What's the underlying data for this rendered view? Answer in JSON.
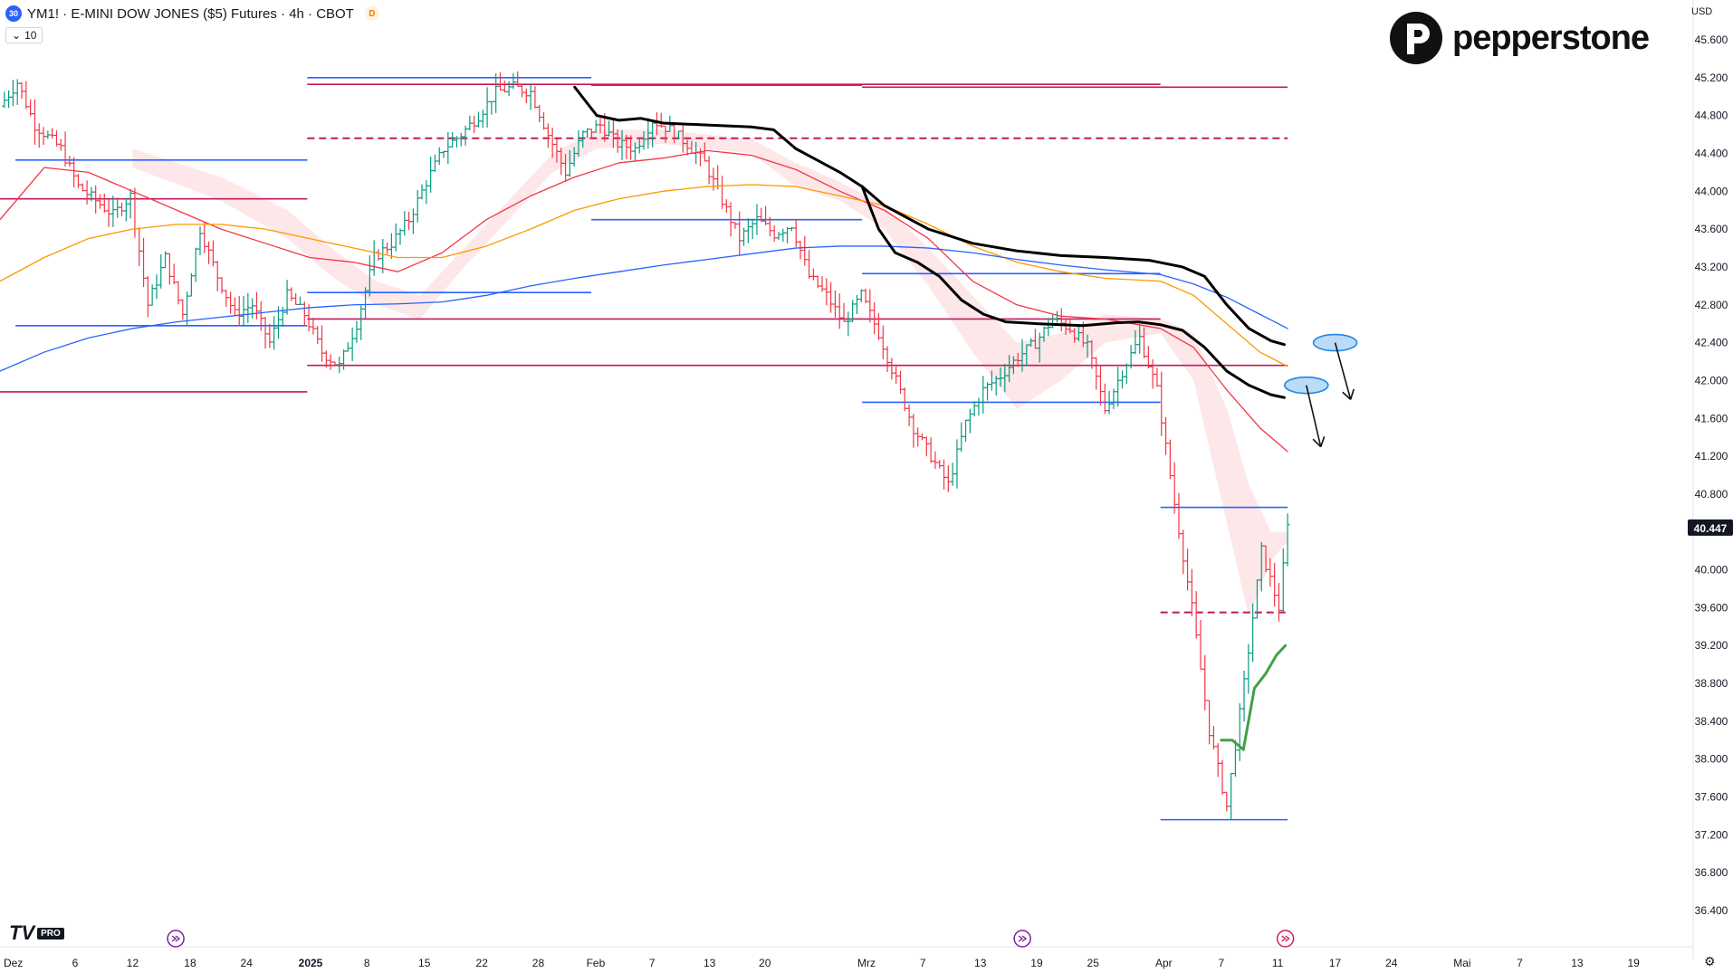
{
  "header": {
    "symbol_badge": "30",
    "title": "YM1! · E-MINI DOW JONES ($5) Futures · 4h · CBOT",
    "source_badge": "D",
    "volume_label": "10"
  },
  "brand": {
    "name": "pepperstone"
  },
  "platform": {
    "logo": "TV",
    "tier": "PRO"
  },
  "axis": {
    "currency": "USD"
  },
  "colors": {
    "up": "#089981",
    "down": "#f23645",
    "blue_level": "#2962ff",
    "magenta_level": "#c2185b",
    "ema_red": "#f23645",
    "ema_orange": "#ff9800",
    "ema_blue": "#2962ff",
    "projection_black": "#000000",
    "projection_green": "#43a047",
    "ellipse": "#1e88e5"
  },
  "chart_data": {
    "type": "candlestick",
    "interval": "4h",
    "y_ticks": [
      36400,
      36800,
      37200,
      37600,
      38000,
      38400,
      38800,
      39200,
      39600,
      40000,
      40400,
      40800,
      41200,
      41600,
      42000,
      42400,
      42800,
      43200,
      43600,
      44000,
      44400,
      44800,
      45200,
      45600
    ],
    "y_tick_labels": [
      "36.400",
      "36.800",
      "37.200",
      "37.600",
      "38.000",
      "38.400",
      "38.800",
      "39.200",
      "39.600",
      "40.000",
      "40.400",
      "40.800",
      "41.200",
      "41.600",
      "42.000",
      "42.400",
      "42.800",
      "43.200",
      "43.600",
      "44.000",
      "44.400",
      "44.800",
      "45.200",
      "45.600"
    ],
    "ylim": [
      36200,
      45850
    ],
    "x_labels": [
      "Dez",
      "6",
      "12",
      "18",
      "24",
      "2025",
      "8",
      "15",
      "22",
      "28",
      "Feb",
      "7",
      "13",
      "20",
      "Mrz",
      "7",
      "13",
      "19",
      "25",
      "Apr",
      "7",
      "11",
      "17",
      "24",
      "Mai",
      "7",
      "13",
      "19"
    ],
    "last_price": "40.447",
    "price_path": [
      [
        0,
        44900
      ],
      [
        4,
        45150
      ],
      [
        8,
        44700
      ],
      [
        14,
        44450
      ],
      [
        18,
        44050
      ],
      [
        22,
        43900
      ],
      [
        26,
        43750
      ],
      [
        30,
        43950
      ],
      [
        34,
        42800
      ],
      [
        38,
        43300
      ],
      [
        42,
        42700
      ],
      [
        46,
        43600
      ],
      [
        50,
        43100
      ],
      [
        54,
        42700
      ],
      [
        58,
        42800
      ],
      [
        62,
        42400
      ],
      [
        66,
        42900
      ],
      [
        70,
        42700
      ],
      [
        74,
        42300
      ],
      [
        78,
        42150
      ],
      [
        82,
        42600
      ],
      [
        86,
        43300
      ],
      [
        90,
        43450
      ],
      [
        94,
        43700
      ],
      [
        98,
        44100
      ],
      [
        102,
        44450
      ],
      [
        106,
        44600
      ],
      [
        110,
        44800
      ],
      [
        114,
        45050
      ],
      [
        118,
        45100
      ],
      [
        122,
        45050
      ],
      [
        126,
        44600
      ],
      [
        130,
        44200
      ],
      [
        134,
        44600
      ],
      [
        138,
        44700
      ],
      [
        142,
        44500
      ],
      [
        146,
        44450
      ],
      [
        150,
        44750
      ],
      [
        154,
        44650
      ],
      [
        158,
        44500
      ],
      [
        162,
        44300
      ],
      [
        166,
        43900
      ],
      [
        170,
        43500
      ],
      [
        174,
        43700
      ],
      [
        178,
        43550
      ],
      [
        182,
        43650
      ],
      [
        186,
        43100
      ],
      [
        190,
        42900
      ],
      [
        194,
        42600
      ],
      [
        198,
        42900
      ],
      [
        202,
        42500
      ],
      [
        206,
        42000
      ],
      [
        210,
        41500
      ],
      [
        214,
        41200
      ],
      [
        218,
        40900
      ],
      [
        222,
        41550
      ],
      [
        226,
        41900
      ],
      [
        230,
        42050
      ],
      [
        234,
        42250
      ],
      [
        238,
        42400
      ],
      [
        242,
        42650
      ],
      [
        246,
        42550
      ],
      [
        250,
        42350
      ],
      [
        254,
        41700
      ],
      [
        258,
        42100
      ],
      [
        262,
        42450
      ],
      [
        266,
        41900
      ],
      [
        270,
        40700
      ],
      [
        274,
        39600
      ],
      [
        278,
        38300
      ],
      [
        282,
        37500
      ],
      [
        286,
        38800
      ],
      [
        290,
        40200
      ],
      [
        294,
        39600
      ],
      [
        296,
        40447
      ]
    ],
    "horizontal_levels": [
      {
        "color": "blue",
        "y": 45200,
        "x": [
          278,
          535
        ]
      },
      {
        "color": "blue",
        "y": 45120,
        "x": [
          535,
          780
        ]
      },
      {
        "color": "magenta",
        "y": 45130,
        "x": [
          278,
          1050
        ]
      },
      {
        "color": "magenta",
        "y": 45100,
        "x": [
          780,
          1165
        ]
      },
      {
        "color": "magenta",
        "style": "dashed",
        "y": 44560,
        "x": [
          278,
          1165
        ]
      },
      {
        "color": "blue",
        "y": 44330,
        "x": [
          14,
          278
        ]
      },
      {
        "color": "magenta",
        "y": 43920,
        "x": [
          0,
          278
        ]
      },
      {
        "color": "blue",
        "y": 43700,
        "x": [
          535,
          780
        ]
      },
      {
        "color": "blue",
        "y": 43130,
        "x": [
          780,
          1050
        ]
      },
      {
        "color": "blue",
        "y": 42930,
        "x": [
          278,
          535
        ]
      },
      {
        "color": "magenta",
        "y": 42650,
        "x": [
          278,
          1050
        ]
      },
      {
        "color": "blue",
        "y": 42580,
        "x": [
          14,
          278
        ]
      },
      {
        "color": "magenta",
        "y": 42160,
        "x": [
          278,
          1165
        ]
      },
      {
        "color": "magenta",
        "y": 41880,
        "x": [
          0,
          278
        ]
      },
      {
        "color": "blue",
        "y": 41770,
        "x": [
          780,
          1050
        ]
      },
      {
        "color": "blue",
        "y": 40660,
        "x": [
          1050,
          1165
        ]
      },
      {
        "color": "magenta",
        "style": "dashed",
        "y": 39550,
        "x": [
          1050,
          1165
        ]
      },
      {
        "color": "blue",
        "y": 37360,
        "x": [
          1050,
          1165
        ]
      }
    ],
    "series": [
      {
        "name": "",
        "color": "red",
        "points": [
          [
            0,
            43700
          ],
          [
            40,
            44250
          ],
          [
            80,
            44200
          ],
          [
            120,
            44000
          ],
          [
            160,
            43800
          ],
          [
            200,
            43600
          ],
          [
            240,
            43450
          ],
          [
            280,
            43300
          ],
          [
            320,
            43250
          ],
          [
            360,
            43150
          ],
          [
            400,
            43350
          ],
          [
            440,
            43700
          ],
          [
            480,
            43950
          ],
          [
            520,
            44150
          ],
          [
            560,
            44300
          ],
          [
            600,
            44350
          ],
          [
            640,
            44430
          ],
          [
            680,
            44380
          ],
          [
            720,
            44230
          ],
          [
            760,
            44000
          ],
          [
            800,
            43800
          ],
          [
            840,
            43500
          ],
          [
            880,
            43050
          ],
          [
            920,
            42800
          ],
          [
            960,
            42680
          ],
          [
            1000,
            42650
          ],
          [
            1050,
            42550
          ],
          [
            1080,
            42350
          ],
          [
            1110,
            41900
          ],
          [
            1140,
            41500
          ],
          [
            1165,
            41250
          ]
        ]
      },
      {
        "name": "",
        "color": "orange",
        "points": [
          [
            0,
            43050
          ],
          [
            40,
            43300
          ],
          [
            80,
            43500
          ],
          [
            120,
            43600
          ],
          [
            160,
            43650
          ],
          [
            200,
            43650
          ],
          [
            240,
            43600
          ],
          [
            280,
            43500
          ],
          [
            320,
            43400
          ],
          [
            360,
            43300
          ],
          [
            400,
            43300
          ],
          [
            440,
            43420
          ],
          [
            480,
            43600
          ],
          [
            520,
            43800
          ],
          [
            560,
            43920
          ],
          [
            600,
            44000
          ],
          [
            640,
            44050
          ],
          [
            680,
            44070
          ],
          [
            720,
            44050
          ],
          [
            760,
            43950
          ],
          [
            800,
            43850
          ],
          [
            840,
            43650
          ],
          [
            880,
            43420
          ],
          [
            920,
            43250
          ],
          [
            960,
            43150
          ],
          [
            1000,
            43080
          ],
          [
            1050,
            43050
          ],
          [
            1080,
            42900
          ],
          [
            1110,
            42600
          ],
          [
            1140,
            42300
          ],
          [
            1165,
            42150
          ]
        ]
      },
      {
        "name": "",
        "color": "blue",
        "points": [
          [
            0,
            42100
          ],
          [
            40,
            42300
          ],
          [
            80,
            42450
          ],
          [
            120,
            42550
          ],
          [
            160,
            42620
          ],
          [
            200,
            42670
          ],
          [
            240,
            42720
          ],
          [
            280,
            42770
          ],
          [
            320,
            42800
          ],
          [
            360,
            42810
          ],
          [
            400,
            42830
          ],
          [
            440,
            42900
          ],
          [
            480,
            43000
          ],
          [
            520,
            43080
          ],
          [
            560,
            43150
          ],
          [
            600,
            43220
          ],
          [
            640,
            43280
          ],
          [
            680,
            43340
          ],
          [
            720,
            43400
          ],
          [
            760,
            43420
          ],
          [
            800,
            43420
          ],
          [
            840,
            43400
          ],
          [
            880,
            43350
          ],
          [
            920,
            43280
          ],
          [
            960,
            43220
          ],
          [
            1000,
            43170
          ],
          [
            1050,
            43120
          ],
          [
            1080,
            43020
          ],
          [
            1110,
            42880
          ],
          [
            1140,
            42700
          ],
          [
            1165,
            42550
          ]
        ]
      },
      {
        "name": "",
        "color": "black",
        "points": [
          [
            520,
            45100
          ],
          [
            540,
            44800
          ],
          [
            560,
            44750
          ],
          [
            580,
            44770
          ],
          [
            600,
            44720
          ],
          [
            640,
            44700
          ],
          [
            680,
            44680
          ],
          [
            700,
            44650
          ],
          [
            720,
            44450
          ],
          [
            760,
            44200
          ],
          [
            780,
            44050
          ],
          [
            800,
            43850
          ],
          [
            840,
            43600
          ],
          [
            880,
            43450
          ],
          [
            920,
            43370
          ],
          [
            960,
            43320
          ],
          [
            1000,
            43300
          ],
          [
            1040,
            43270
          ],
          [
            1070,
            43200
          ],
          [
            1090,
            43100
          ],
          [
            1110,
            42800
          ],
          [
            1130,
            42550
          ],
          [
            1150,
            42420
          ],
          [
            1162,
            42380
          ]
        ]
      },
      {
        "name": "",
        "color": "black",
        "points": [
          [
            780,
            44050
          ],
          [
            795,
            43600
          ],
          [
            810,
            43350
          ],
          [
            830,
            43250
          ],
          [
            850,
            43100
          ],
          [
            870,
            42850
          ],
          [
            890,
            42700
          ],
          [
            910,
            42620
          ],
          [
            940,
            42600
          ],
          [
            980,
            42580
          ],
          [
            1010,
            42610
          ],
          [
            1030,
            42620
          ],
          [
            1050,
            42590
          ],
          [
            1070,
            42530
          ],
          [
            1090,
            42350
          ],
          [
            1110,
            42100
          ],
          [
            1130,
            41950
          ],
          [
            1150,
            41850
          ],
          [
            1162,
            41820
          ]
        ]
      },
      {
        "name": "",
        "color": "green",
        "points": [
          [
            1105,
            38200
          ],
          [
            1115,
            38200
          ],
          [
            1125,
            38100
          ],
          [
            1135,
            38750
          ],
          [
            1145,
            38900
          ],
          [
            1155,
            39100
          ],
          [
            1163,
            39200
          ]
        ]
      }
    ],
    "annotations": [
      {
        "type": "ellipse",
        "x": 1182,
        "y": 41950
      },
      {
        "type": "arrow",
        "from": [
          1182,
          41950
        ],
        "to": [
          1195,
          41300
        ]
      },
      {
        "type": "ellipse",
        "x": 1208,
        "y": 42400
      },
      {
        "type": "arrow",
        "from": [
          1208,
          42400
        ],
        "to": [
          1222,
          41800
        ]
      }
    ],
    "grid": false,
    "legend": "none"
  }
}
